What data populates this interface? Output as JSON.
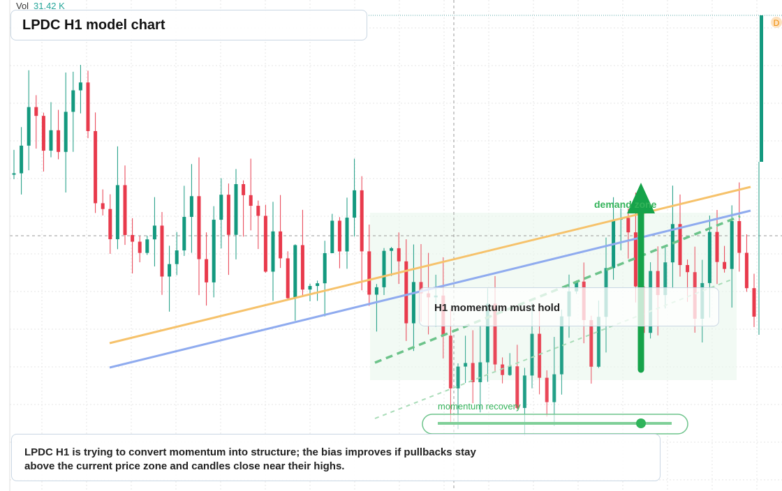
{
  "header": {
    "volume_label": "Vol",
    "volume_value": "31.42 K",
    "title": "LPDC H1 model chart",
    "badge": "D"
  },
  "annotations": {
    "zone": "demand zone",
    "callout": "H1 momentum must hold",
    "recovery": "momentum recovery"
  },
  "caption": "LPDC H1 is trying to convert momentum into structure; the bias improves if pullbacks stay above the current price zone and candles close near their highs."
}
